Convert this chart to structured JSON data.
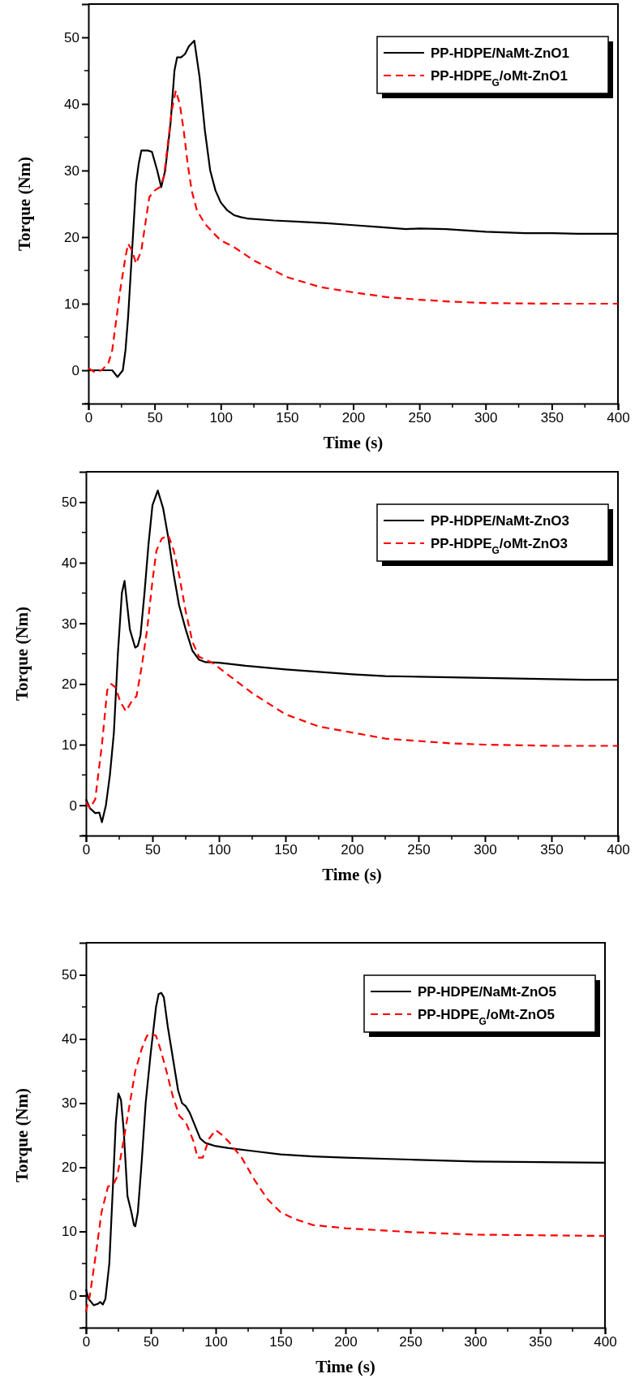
{
  "chart_data": [
    {
      "type": "line",
      "xlabel": "Time (s)",
      "ylabel": "Torque (Nm)",
      "xlim": [
        0,
        400
      ],
      "ylim": [
        -5,
        55
      ],
      "xticks": [
        0,
        50,
        100,
        150,
        200,
        250,
        300,
        350,
        400
      ],
      "yticks": [
        0,
        10,
        20,
        30,
        40,
        50
      ],
      "legend": "top right",
      "grid": false,
      "series": [
        {
          "name": "PP-HDPE/NaMt-ZnO1",
          "color": "#000000",
          "line_style": "solid",
          "x": [
            0,
            18,
            22,
            26,
            28,
            30,
            33,
            36,
            38,
            40,
            42,
            45,
            48,
            52,
            55,
            58,
            62,
            65,
            67,
            70,
            73,
            76,
            80,
            84,
            88,
            92,
            96,
            100,
            105,
            110,
            115,
            120,
            140,
            160,
            180,
            200,
            220,
            240,
            250,
            270,
            300,
            330,
            350,
            370,
            400
          ],
          "values": [
            0,
            0,
            -1,
            0,
            3,
            8,
            18,
            28,
            31,
            33,
            33,
            33,
            32.8,
            30,
            27.5,
            30,
            37,
            45,
            47,
            47,
            47.5,
            48.7,
            49.5,
            44,
            36,
            30,
            27,
            25.2,
            24,
            23.3,
            23,
            22.8,
            22.5,
            22.3,
            22.1,
            21.8,
            21.5,
            21.2,
            21.3,
            21.2,
            20.8,
            20.6,
            20.6,
            20.5,
            20.5
          ]
        },
        {
          "name": "PP-HDPE$_{G}$/oMt-ZnO1",
          "color": "#ff0000",
          "line_style": "dashed",
          "x": [
            0,
            5,
            10,
            15,
            18,
            20,
            24,
            28,
            30,
            33,
            36,
            40,
            43,
            46,
            50,
            54,
            57,
            60,
            63,
            66,
            69,
            72,
            75,
            78,
            82,
            88,
            95,
            100,
            110,
            125,
            150,
            175,
            200,
            225,
            250,
            275,
            300,
            350,
            400
          ],
          "values": [
            0.3,
            -0.3,
            0,
            1,
            3,
            6,
            12,
            17,
            19,
            18,
            16,
            18,
            22,
            26,
            27,
            27.5,
            29,
            34,
            39,
            42,
            40,
            36,
            31,
            27,
            24,
            22,
            20.5,
            19.5,
            18.5,
            16.5,
            14,
            12.5,
            11.7,
            11,
            10.6,
            10.3,
            10.1,
            10,
            10
          ]
        }
      ]
    },
    {
      "type": "line",
      "xlabel": "Time (s)",
      "ylabel": "Torque (Nm)",
      "xlim": [
        0,
        400
      ],
      "ylim": [
        -5,
        55
      ],
      "xticks": [
        0,
        50,
        100,
        150,
        200,
        250,
        300,
        350,
        400
      ],
      "yticks": [
        0,
        10,
        20,
        30,
        40,
        50
      ],
      "legend": "top right",
      "grid": false,
      "series": [
        {
          "name": "PP-HDPE/NaMt-ZnO3",
          "color": "#000000",
          "line_style": "solid",
          "x": [
            0,
            3,
            7,
            10,
            12,
            15,
            18,
            21,
            24,
            27,
            29,
            33,
            37,
            39,
            41,
            44,
            47,
            50,
            54,
            58,
            62,
            66,
            70,
            75,
            80,
            85,
            90,
            100,
            120,
            150,
            175,
            200,
            225,
            250,
            275,
            300,
            325,
            350,
            375,
            400
          ],
          "values": [
            1,
            -0.5,
            -1.3,
            -1.2,
            -2.8,
            0,
            5,
            12,
            25,
            35,
            37,
            29,
            26,
            26.3,
            28,
            35,
            43,
            49.5,
            51.9,
            49,
            44,
            38,
            33,
            29,
            25.5,
            24,
            23.6,
            23.5,
            23,
            22.4,
            22,
            21.6,
            21.3,
            21.2,
            21.1,
            21,
            20.9,
            20.8,
            20.7,
            20.7
          ]
        },
        {
          "name": "PP-HDPE$_{G}$/oMt-ZnO3",
          "color": "#ff0000",
          "line_style": "dashed",
          "x": [
            0,
            3,
            7,
            12,
            16,
            19,
            22,
            26,
            30,
            34,
            38,
            42,
            46,
            50,
            53,
            57,
            62,
            66,
            70,
            75,
            80,
            85,
            95,
            110,
            125,
            150,
            175,
            200,
            225,
            250,
            275,
            300,
            350,
            400
          ],
          "values": [
            0.5,
            -0.5,
            1,
            10,
            19,
            20,
            19.5,
            17,
            15.5,
            17,
            18,
            23,
            29,
            37,
            42,
            44,
            44.5,
            42,
            38,
            32,
            27,
            24.5,
            23.5,
            21,
            18.5,
            15,
            13,
            12,
            11,
            10.6,
            10.2,
            10,
            9.8,
            9.8
          ]
        }
      ]
    },
    {
      "type": "line",
      "xlabel": "Time (s)",
      "ylabel": "Torque (Nm)",
      "xlim": [
        0,
        400
      ],
      "ylim": [
        -5,
        55
      ],
      "xticks": [
        0,
        50,
        100,
        150,
        200,
        250,
        300,
        350,
        400
      ],
      "yticks": [
        0,
        10,
        20,
        30,
        40,
        50
      ],
      "legend": "top right",
      "grid": false,
      "series": [
        {
          "name": "PP-HDPE/NaMt-ZnO5",
          "color": "#000000",
          "line_style": "solid",
          "x": [
            0,
            2,
            6,
            9,
            11,
            13,
            15,
            18,
            21,
            23,
            25,
            27,
            29,
            32,
            35,
            37,
            38,
            40,
            43,
            46,
            50,
            54,
            56,
            58,
            60,
            63,
            67,
            71,
            74,
            77,
            80,
            85,
            88,
            92,
            100,
            110,
            130,
            150,
            175,
            200,
            250,
            300,
            350,
            400
          ],
          "values": [
            1,
            -0.5,
            -1.5,
            -1.3,
            -1,
            -1.4,
            -0.5,
            5,
            18,
            27,
            31.5,
            30.5,
            26,
            15.5,
            13,
            11,
            10.8,
            13,
            21,
            30,
            38,
            45,
            47,
            47.2,
            46.5,
            42,
            37,
            32,
            30,
            29.5,
            28.5,
            26,
            24.5,
            23.8,
            23.3,
            23,
            22.5,
            22,
            21.7,
            21.5,
            21.2,
            20.9,
            20.8,
            20.7
          ]
        },
        {
          "name": "PP-HDPE$_{G}$/oMt-ZnO5",
          "color": "#ff0000",
          "line_style": "dashed",
          "x": [
            0,
            3,
            8,
            12,
            17,
            21,
            24,
            28,
            33,
            38,
            43,
            47,
            50,
            54,
            58,
            62,
            67,
            72,
            77,
            83,
            86,
            90,
            95,
            100,
            105,
            110,
            120,
            130,
            140,
            150,
            160,
            175,
            200,
            250,
            300,
            350,
            400
          ],
          "values": [
            -2.5,
            0,
            7,
            13,
            17,
            17.3,
            18.5,
            23,
            29,
            35,
            38.5,
            40.5,
            40.8,
            40.5,
            38,
            35,
            31,
            28,
            27,
            24,
            21.5,
            21.5,
            24.5,
            25.8,
            25,
            24,
            21.5,
            18,
            15,
            13,
            12,
            11,
            10.5,
            9.9,
            9.5,
            9.4,
            9.3
          ]
        }
      ]
    }
  ]
}
